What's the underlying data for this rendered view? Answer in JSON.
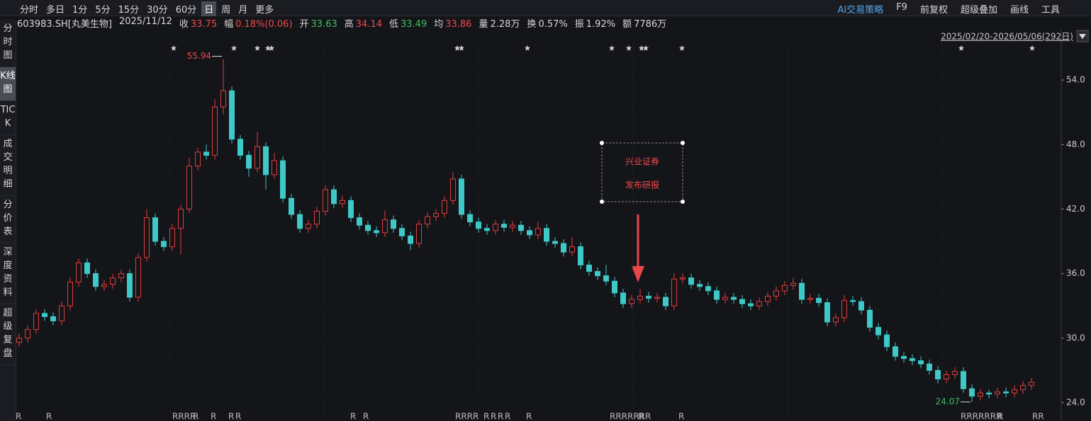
{
  "toolbar": {
    "periods": [
      "分时",
      "多日",
      "1分",
      "5分",
      "15分",
      "30分",
      "60分",
      "日",
      "周",
      "月",
      "更多"
    ],
    "active": "日",
    "tools": [
      "AI交易策略",
      "F9",
      "前复权",
      "超级叠加",
      "画线",
      "工具"
    ]
  },
  "sidebar": {
    "tabs": [
      "分时图",
      "K线图",
      "TICK",
      "成交明细",
      "分价表",
      "深度资料",
      "超级复盘"
    ],
    "active": "K线图"
  },
  "info": {
    "code": "603983.SH[丸美生物]",
    "date": "2025/11/12",
    "fields": [
      {
        "label": "收",
        "value": "33.75",
        "color": "#f04848"
      },
      {
        "label": "幅",
        "value": "0.18%(0.06)",
        "color": "#f04848"
      },
      {
        "label": "开",
        "value": "33.63",
        "color": "#3cc060"
      },
      {
        "label": "高",
        "value": "34.14",
        "color": "#f04848"
      },
      {
        "label": "低",
        "value": "33.49",
        "color": "#3cc060"
      },
      {
        "label": "均",
        "value": "33.86",
        "color": "#f04848"
      },
      {
        "label": "量",
        "value": "2.28万",
        "color": "#d8d8d8"
      },
      {
        "label": "换",
        "value": "0.57%",
        "color": "#d8d8d8"
      },
      {
        "label": "振",
        "value": "1.92%",
        "color": "#d8d8d8"
      },
      {
        "label": "额",
        "value": "7786万",
        "color": "#d8d8d8"
      }
    ]
  },
  "chart_data": {
    "type": "candlestick",
    "range_label": "2025/02/20-2026/05/06(292日)",
    "up_color": "#e03c3c",
    "down_color": "#3ec8c8",
    "ylim": [
      23.28,
      57.36
    ],
    "yticks": [
      {
        "value": 54,
        "label": "54.0"
      },
      {
        "value": 48,
        "label": "48.0"
      },
      {
        "value": 42,
        "label": "42.0"
      },
      {
        "value": 36,
        "label": "36.0"
      },
      {
        "value": 30,
        "label": "30.0"
      },
      {
        "value": 24,
        "label": "24.0"
      }
    ],
    "high_label_index": 24,
    "low_label_index": 112,
    "annotation": [
      "兴业证券",
      "发布研报"
    ],
    "r_markers": [
      "R",
      "R",
      "RRRR",
      "R",
      "R",
      "R",
      "R",
      "R",
      "R",
      "RRRR",
      "R",
      "R",
      "R",
      "R",
      "R",
      "RRRRRRR",
      "R",
      "R",
      "RRRRRRR",
      "R",
      "RR"
    ],
    "ohlc": [
      [
        29.6,
        30.4,
        29.2,
        30.0
      ],
      [
        30.0,
        31.2,
        29.6,
        30.8
      ],
      [
        30.8,
        32.7,
        30.4,
        32.3
      ],
      [
        32.3,
        32.7,
        31.6,
        32.0
      ],
      [
        32.0,
        32.4,
        31.2,
        31.6
      ],
      [
        31.6,
        33.4,
        31.2,
        33.0
      ],
      [
        33.0,
        35.6,
        32.6,
        35.2
      ],
      [
        35.2,
        37.4,
        34.8,
        37.0
      ],
      [
        37.0,
        37.4,
        35.6,
        36.0
      ],
      [
        36.0,
        36.4,
        34.4,
        34.8
      ],
      [
        34.8,
        35.4,
        34.4,
        35.0
      ],
      [
        35.0,
        36.0,
        34.6,
        35.6
      ],
      [
        35.6,
        36.4,
        35.2,
        36.0
      ],
      [
        36.0,
        36.4,
        33.4,
        33.8
      ],
      [
        33.8,
        37.9,
        33.4,
        37.5
      ],
      [
        37.5,
        42.0,
        37.1,
        41.2
      ],
      [
        41.2,
        41.6,
        38.6,
        39.0
      ],
      [
        39.0,
        39.4,
        38.1,
        38.5
      ],
      [
        38.5,
        40.6,
        38.1,
        40.2
      ],
      [
        40.2,
        42.4,
        37.8,
        42.0
      ],
      [
        42.0,
        46.8,
        41.6,
        46.0
      ],
      [
        46.0,
        47.7,
        45.6,
        47.3
      ],
      [
        47.3,
        48.0,
        46.6,
        47.0
      ],
      [
        47.0,
        52.2,
        46.6,
        51.5
      ],
      [
        51.5,
        55.94,
        50.8,
        53.0
      ],
      [
        53.0,
        53.4,
        48.1,
        48.5
      ],
      [
        48.5,
        48.9,
        46.6,
        47.0
      ],
      [
        47.0,
        47.4,
        45.0,
        45.8
      ],
      [
        45.8,
        49.2,
        45.4,
        47.8
      ],
      [
        47.8,
        48.2,
        43.8,
        45.2
      ],
      [
        45.2,
        47.2,
        44.8,
        46.5
      ],
      [
        46.5,
        46.9,
        42.6,
        43.0
      ],
      [
        43.0,
        43.4,
        41.1,
        41.5
      ],
      [
        41.5,
        41.9,
        39.8,
        40.2
      ],
      [
        40.2,
        41.0,
        39.8,
        40.6
      ],
      [
        40.6,
        42.2,
        40.2,
        41.8
      ],
      [
        41.8,
        44.2,
        41.4,
        43.8
      ],
      [
        43.8,
        44.2,
        42.1,
        42.5
      ],
      [
        42.5,
        43.2,
        42.1,
        42.8
      ],
      [
        42.8,
        43.2,
        40.8,
        41.2
      ],
      [
        41.2,
        41.6,
        40.1,
        40.5
      ],
      [
        40.5,
        40.9,
        39.6,
        40.0
      ],
      [
        40.0,
        40.4,
        39.4,
        39.8
      ],
      [
        39.8,
        41.9,
        39.4,
        41.0
      ],
      [
        41.0,
        41.4,
        39.8,
        40.2
      ],
      [
        40.2,
        40.6,
        39.1,
        39.5
      ],
      [
        39.5,
        39.9,
        38.2,
        38.8
      ],
      [
        38.8,
        41.0,
        38.4,
        40.6
      ],
      [
        40.6,
        41.7,
        40.2,
        41.3
      ],
      [
        41.3,
        42.0,
        40.9,
        41.6
      ],
      [
        41.6,
        43.2,
        41.2,
        42.8
      ],
      [
        42.8,
        45.4,
        42.4,
        44.8
      ],
      [
        44.8,
        45.2,
        41.1,
        41.5
      ],
      [
        41.5,
        41.9,
        40.4,
        40.8
      ],
      [
        40.8,
        41.2,
        39.8,
        40.2
      ],
      [
        40.2,
        40.6,
        39.6,
        40.0
      ],
      [
        40.0,
        41.0,
        39.6,
        40.6
      ],
      [
        40.6,
        41.0,
        39.9,
        40.3
      ],
      [
        40.3,
        40.9,
        39.9,
        40.5
      ],
      [
        40.5,
        40.9,
        39.6,
        40.0
      ],
      [
        40.0,
        40.4,
        39.2,
        39.6
      ],
      [
        39.6,
        40.8,
        39.2,
        40.2
      ],
      [
        40.2,
        40.6,
        38.6,
        39.0
      ],
      [
        39.0,
        39.4,
        38.4,
        38.8
      ],
      [
        38.8,
        39.2,
        37.6,
        38.0
      ],
      [
        38.0,
        39.4,
        37.6,
        38.5
      ],
      [
        38.5,
        38.9,
        36.4,
        36.8
      ],
      [
        36.8,
        37.2,
        35.8,
        36.2
      ],
      [
        36.2,
        36.6,
        35.4,
        35.8
      ],
      [
        35.8,
        36.8,
        34.9,
        35.3
      ],
      [
        35.3,
        35.7,
        33.8,
        34.2
      ],
      [
        34.2,
        34.6,
        32.8,
        33.2
      ],
      [
        33.2,
        34.0,
        32.8,
        33.6
      ],
      [
        33.6,
        34.6,
        33.2,
        33.9
      ],
      [
        33.9,
        34.3,
        33.3,
        33.7
      ],
      [
        33.7,
        34.2,
        33.3,
        33.8
      ],
      [
        33.8,
        34.2,
        32.6,
        33.0
      ],
      [
        33.0,
        36.0,
        32.6,
        35.5
      ],
      [
        35.5,
        36.0,
        35.1,
        35.6
      ],
      [
        35.6,
        36.0,
        34.6,
        35.0
      ],
      [
        35.0,
        35.4,
        34.4,
        34.8
      ],
      [
        34.8,
        35.2,
        34.0,
        34.4
      ],
      [
        34.4,
        34.8,
        33.2,
        33.6
      ],
      [
        33.6,
        34.2,
        33.2,
        33.8
      ],
      [
        33.8,
        34.2,
        33.2,
        33.6
      ],
      [
        33.6,
        34.0,
        32.8,
        33.2
      ],
      [
        33.2,
        33.6,
        32.6,
        33.0
      ],
      [
        33.0,
        33.8,
        32.6,
        33.4
      ],
      [
        33.4,
        34.3,
        33.0,
        33.9
      ],
      [
        33.9,
        34.8,
        33.5,
        34.4
      ],
      [
        34.4,
        35.3,
        34.0,
        34.9
      ],
      [
        34.9,
        35.6,
        34.5,
        35.1
      ],
      [
        35.1,
        35.5,
        33.2,
        33.6
      ],
      [
        33.6,
        34.1,
        33.2,
        33.7
      ],
      [
        33.7,
        34.1,
        32.9,
        33.3
      ],
      [
        33.3,
        33.7,
        31.1,
        31.5
      ],
      [
        31.5,
        32.3,
        31.1,
        31.9
      ],
      [
        31.9,
        34.0,
        31.5,
        33.5
      ],
      [
        33.5,
        33.9,
        33.0,
        33.4
      ],
      [
        33.4,
        33.8,
        32.2,
        32.6
      ],
      [
        32.6,
        33.0,
        30.6,
        31.0
      ],
      [
        31.0,
        31.4,
        29.9,
        30.3
      ],
      [
        30.3,
        30.7,
        28.8,
        29.2
      ],
      [
        29.2,
        29.6,
        27.9,
        28.3
      ],
      [
        28.3,
        28.7,
        27.7,
        28.1
      ],
      [
        28.1,
        28.5,
        27.5,
        27.9
      ],
      [
        27.9,
        28.3,
        27.2,
        27.6
      ],
      [
        27.6,
        28.0,
        26.6,
        27.0
      ],
      [
        27.0,
        27.4,
        25.8,
        26.2
      ],
      [
        26.2,
        27.0,
        25.8,
        26.6
      ],
      [
        26.6,
        27.3,
        26.2,
        26.9
      ],
      [
        26.9,
        27.3,
        24.9,
        25.3
      ],
      [
        25.3,
        25.7,
        24.07,
        24.6
      ],
      [
        24.6,
        25.3,
        24.2,
        24.9
      ],
      [
        24.9,
        25.2,
        24.4,
        24.8
      ],
      [
        24.8,
        25.4,
        24.4,
        25.0
      ],
      [
        25.0,
        25.4,
        24.5,
        24.9
      ],
      [
        24.9,
        25.6,
        24.5,
        25.2
      ],
      [
        25.2,
        26.0,
        24.8,
        25.6
      ],
      [
        25.6,
        26.3,
        25.2,
        25.9
      ]
    ]
  }
}
